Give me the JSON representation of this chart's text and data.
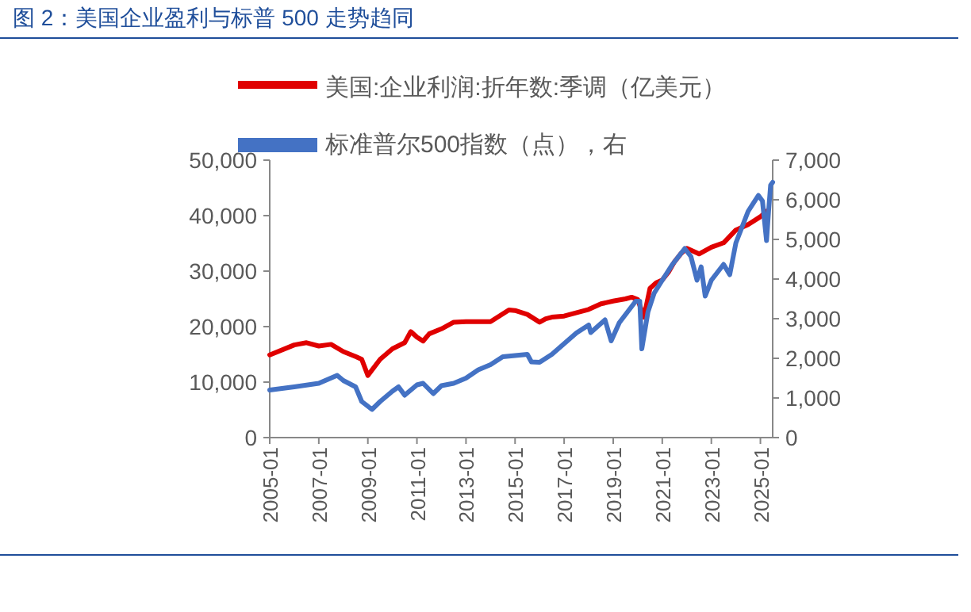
{
  "chart_data": {
    "type": "line",
    "title": "图 2：美国企业盈利与标普 500 走势趋同",
    "series": [
      {
        "name": "美国:企业利润:折年数:季调（亿美元）",
        "color": "#e00000",
        "axis": "y",
        "x": [
          "2005-01",
          "2006-01",
          "2006-07",
          "2007-01",
          "2007-07",
          "2008-01",
          "2008-07",
          "2008-10",
          "2009-01",
          "2009-07",
          "2010-01",
          "2010-07",
          "2010-10",
          "2011-01",
          "2011-04",
          "2011-07",
          "2012-01",
          "2012-07",
          "2013-01",
          "2014-01",
          "2014-10",
          "2015-01",
          "2015-07",
          "2016-01",
          "2016-04",
          "2016-07",
          "2017-01",
          "2018-01",
          "2018-07",
          "2019-01",
          "2019-07",
          "2019-10",
          "2020-01",
          "2020-04",
          "2020-07",
          "2020-10",
          "2021-01",
          "2021-04",
          "2021-07",
          "2021-10",
          "2022-01",
          "2022-07",
          "2023-01",
          "2023-07",
          "2024-01",
          "2024-07",
          "2025-01",
          "2025-04"
        ],
        "values": [
          14900,
          16700,
          17100,
          16500,
          16800,
          15500,
          14600,
          14100,
          11200,
          14100,
          16000,
          17100,
          19100,
          18100,
          17400,
          18700,
          19600,
          20800,
          20900,
          20900,
          23000,
          22900,
          22200,
          20800,
          21400,
          21700,
          21900,
          23100,
          24100,
          24600,
          25000,
          25300,
          24900,
          21700,
          26900,
          27900,
          28400,
          29800,
          31700,
          33100,
          34100,
          33100,
          34300,
          35100,
          37400,
          38400,
          39800,
          40800
        ]
      },
      {
        "name": "标准普尔500指数（点），右",
        "color": "#4472c4",
        "axis": "y2",
        "x": [
          "2005-01",
          "2006-01",
          "2007-01",
          "2007-10",
          "2008-01",
          "2008-07",
          "2008-10",
          "2009-03",
          "2009-07",
          "2010-01",
          "2010-04",
          "2010-07",
          "2011-01",
          "2011-04",
          "2011-09",
          "2012-01",
          "2012-07",
          "2013-01",
          "2013-07",
          "2014-01",
          "2014-07",
          "2015-01",
          "2015-07",
          "2015-09",
          "2016-01",
          "2016-07",
          "2017-01",
          "2017-07",
          "2018-01",
          "2018-02",
          "2018-09",
          "2018-12",
          "2019-04",
          "2019-12",
          "2020-02",
          "2020-03",
          "2020-06",
          "2020-09",
          "2021-01",
          "2021-06",
          "2021-12",
          "2022-03",
          "2022-06",
          "2022-08",
          "2022-10",
          "2023-01",
          "2023-07",
          "2023-10",
          "2024-01",
          "2024-04",
          "2024-07",
          "2024-12",
          "2025-02",
          "2025-04",
          "2025-05",
          "2025-06",
          "2025-07"
        ],
        "values": [
          1200,
          1280,
          1370,
          1570,
          1440,
          1280,
          910,
          710,
          910,
          1170,
          1280,
          1070,
          1330,
          1370,
          1110,
          1310,
          1370,
          1500,
          1710,
          1840,
          2040,
          2070,
          2100,
          1910,
          1900,
          2100,
          2370,
          2640,
          2840,
          2650,
          2970,
          2440,
          2900,
          3440,
          3440,
          2240,
          3170,
          3640,
          3970,
          4370,
          4770,
          4570,
          3970,
          4310,
          3570,
          3970,
          4370,
          4110,
          4910,
          5310,
          5710,
          6110,
          5970,
          4970,
          5710,
          6370,
          6440
        ]
      }
    ],
    "xlim": [
      "2005-01",
      "2025-07"
    ],
    "xticks": [
      {
        "value": "2005-01",
        "label": "2005-01"
      },
      {
        "value": "2007-01",
        "label": "2007-01"
      },
      {
        "value": "2009-01",
        "label": "2009-01"
      },
      {
        "value": "2011-01",
        "label": "2011-01"
      },
      {
        "value": "2013-01",
        "label": "2013-01"
      },
      {
        "value": "2015-01",
        "label": "2015-01"
      },
      {
        "value": "2017-01",
        "label": "2017-01"
      },
      {
        "value": "2019-01",
        "label": "2019-01"
      },
      {
        "value": "2021-01",
        "label": "2021-01"
      },
      {
        "value": "2023-01",
        "label": "2023-01"
      },
      {
        "value": "2025-01",
        "label": "2025-01"
      }
    ],
    "ylim": [
      0,
      50000
    ],
    "yticks": [
      {
        "value": 0,
        "label": "0"
      },
      {
        "value": 10000,
        "label": "10,000"
      },
      {
        "value": 20000,
        "label": "20,000"
      },
      {
        "value": 30000,
        "label": "30,000"
      },
      {
        "value": 40000,
        "label": "40,000"
      },
      {
        "value": 50000,
        "label": "50,000"
      }
    ],
    "y2lim": [
      0,
      7000
    ],
    "y2ticks": [
      {
        "value": 0,
        "label": "0"
      },
      {
        "value": 1000,
        "label": "1,000"
      },
      {
        "value": 2000,
        "label": "2,000"
      },
      {
        "value": 3000,
        "label": "3,000"
      },
      {
        "value": 4000,
        "label": "4,000"
      },
      {
        "value": 5000,
        "label": "5,000"
      },
      {
        "value": 6000,
        "label": "6,000"
      },
      {
        "value": 7000,
        "label": "7,000"
      }
    ],
    "legend": "top",
    "line_style": "solid",
    "marker": "none"
  }
}
